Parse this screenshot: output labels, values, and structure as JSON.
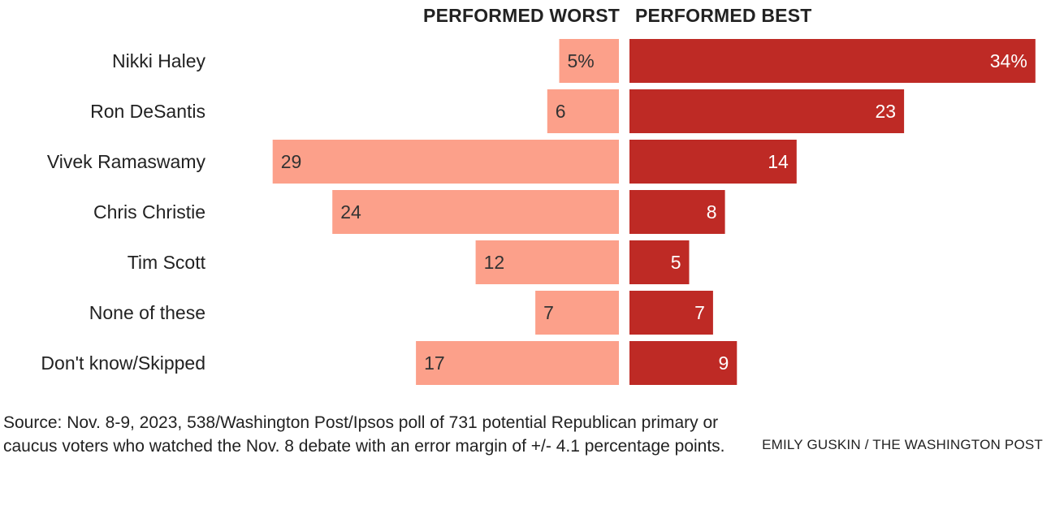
{
  "chart_data": {
    "type": "bar",
    "headers": {
      "worst": "PERFORMED WORST",
      "best": "PERFORMED BEST"
    },
    "categories": [
      "Nikki Haley",
      "Ron DeSantis",
      "Vivek Ramaswamy",
      "Chris Christie",
      "Tim Scott",
      "None of these",
      "Don't know/Skipped"
    ],
    "series": [
      {
        "name": "PERFORMED WORST",
        "values": [
          5,
          6,
          29,
          24,
          12,
          7,
          17
        ],
        "labels": [
          "5%",
          "6",
          "29",
          "24",
          "12",
          "7",
          "17"
        ],
        "color": "#fca08a",
        "label_color": "#333333"
      },
      {
        "name": "PERFORMED BEST",
        "values": [
          34,
          23,
          14,
          8,
          5,
          7,
          9
        ],
        "labels": [
          "34%",
          "23",
          "14",
          "8",
          "5",
          "7",
          "9"
        ],
        "color": "#be2a25",
        "label_color": "#ffffff"
      }
    ]
  },
  "source": "Source: Nov. 8-9, 2023, 538/Washington Post/Ipsos poll of 731 potential Republican primary or caucus voters who watched the Nov. 8 debate with an error margin of +/- 4.1 percentage points.",
  "credit": "EMILY GUSKIN / THE WASHINGTON POST"
}
